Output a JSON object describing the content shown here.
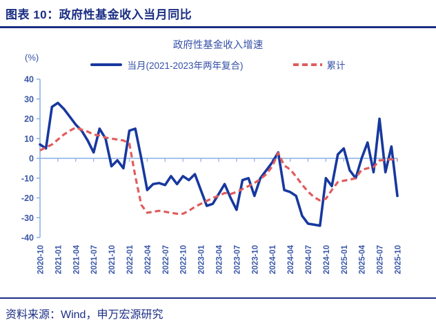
{
  "header": {
    "title": "图表 10：政府性基金收入当月同比"
  },
  "figure": {
    "title": "政府性基金收入增速",
    "unit_label": "(%)",
    "legend": [
      {
        "label": "当月(2021-2023年两年复合)",
        "color": "#17389e",
        "style": "solid"
      },
      {
        "label": "累计",
        "color": "#e05c5c",
        "style": "dashed"
      }
    ]
  },
  "chart_data": {
    "type": "line",
    "title": "政府性基金收入增速",
    "ylabel": "(%)",
    "ylim": [
      -40,
      40
    ],
    "y_ticks": [
      40,
      30,
      20,
      10,
      0,
      -10,
      -20,
      -30,
      -40
    ],
    "grid": false,
    "legend_position": "top",
    "axis_color": "#88aee2",
    "tick_label_color": "#3a57a8",
    "x_tick_every": 3,
    "x": [
      "2020-10",
      "2020-11",
      "2020-12",
      "2021-01",
      "2021-02",
      "2021-03",
      "2021-04",
      "2021-05",
      "2021-06",
      "2021-07",
      "2021-08",
      "2021-09",
      "2021-10",
      "2021-11",
      "2021-12",
      "2022-01",
      "2022-02",
      "2022-03",
      "2022-04",
      "2022-05",
      "2022-06",
      "2022-07",
      "2022-08",
      "2022-09",
      "2022-10",
      "2022-11",
      "2022-12",
      "2023-01",
      "2023-02",
      "2023-03",
      "2023-04",
      "2023-05",
      "2023-06",
      "2023-07",
      "2023-08",
      "2023-09",
      "2023-10",
      "2023-11",
      "2023-12",
      "2024-01",
      "2024-02",
      "2024-03",
      "2024-04",
      "2024-05",
      "2024-06",
      "2024-07",
      "2024-08",
      "2024-09",
      "2024-10",
      "2024-11",
      "2024-12",
      "2025-01",
      "2025-02",
      "2025-03",
      "2025-04",
      "2025-05",
      "2025-06",
      "2025-07",
      "2025-08",
      "2025-09",
      "2025-10"
    ],
    "series": [
      {
        "name": "当月(2021-2023年两年复合)",
        "color": "#17389e",
        "line_style": "solid",
        "values": [
          7,
          5,
          26,
          28,
          25,
          21,
          17,
          14,
          9,
          3,
          15,
          10,
          -4,
          -1,
          -5,
          14,
          15,
          0,
          -16,
          -13,
          -12.5,
          -13.5,
          -9,
          -13,
          -9,
          -11,
          -8,
          -16,
          -24,
          -23,
          -18,
          -13,
          -20,
          -26,
          -11,
          -10,
          -19,
          -10,
          -6,
          -2,
          3,
          -16,
          -17,
          -19,
          -29,
          -33,
          -33.5,
          -34,
          -10,
          -14,
          2,
          5,
          -6,
          -10,
          0,
          8,
          -7,
          20,
          -7,
          6,
          -19
        ]
      },
      {
        "name": "累计",
        "color": "#e05c5c",
        "line_style": "dashed",
        "values": [
          4,
          5.5,
          7,
          9.5,
          12,
          14,
          15.5,
          14.5,
          13.5,
          12,
          11.5,
          10.5,
          10,
          9.5,
          9,
          7.5,
          -9,
          -23.5,
          -27.5,
          -27,
          -26.5,
          -27,
          -27.5,
          -28,
          -28,
          -26.5,
          -24.5,
          -23,
          -21.5,
          -20,
          -19,
          -17.5,
          -18,
          -17,
          -15.5,
          -14,
          -12.5,
          -10.5,
          -8,
          -4,
          2.7,
          -3.6,
          -5.6,
          -9.2,
          -13.3,
          -16.8,
          -19.6,
          -21.3,
          -20.4,
          -16,
          -12,
          -11.3,
          -10.8,
          -10,
          -5.8,
          -5,
          -4.4,
          -1.1,
          -0.7,
          -0.5,
          -0.7
        ]
      }
    ]
  },
  "footer": {
    "source": "资料来源：Wind，申万宏源研究"
  }
}
